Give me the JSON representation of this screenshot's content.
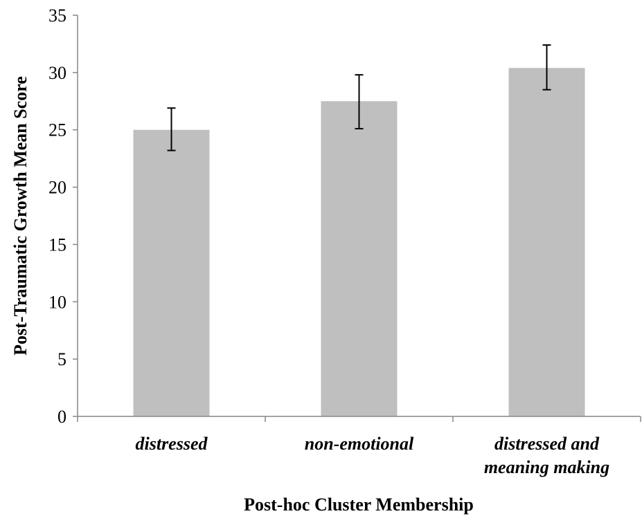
{
  "chart_data": {
    "type": "bar",
    "title": "",
    "xlabel": "Post-hoc Cluster Membership",
    "ylabel": "Post-Traumatic Growth Mean Score",
    "categories": [
      [
        "distressed"
      ],
      [
        "non-emotional"
      ],
      [
        "distressed and",
        "meaning making"
      ]
    ],
    "values": [
      25.0,
      27.5,
      30.4
    ],
    "error_high": [
      26.9,
      29.8,
      32.4
    ],
    "error_low": [
      23.2,
      25.1,
      28.5
    ],
    "ylim": [
      0,
      35
    ],
    "yticks": [
      0,
      5,
      10,
      15,
      20,
      25,
      30,
      35
    ],
    "bar_color": "#bfbfbf",
    "grid": false,
    "legend": "none"
  }
}
